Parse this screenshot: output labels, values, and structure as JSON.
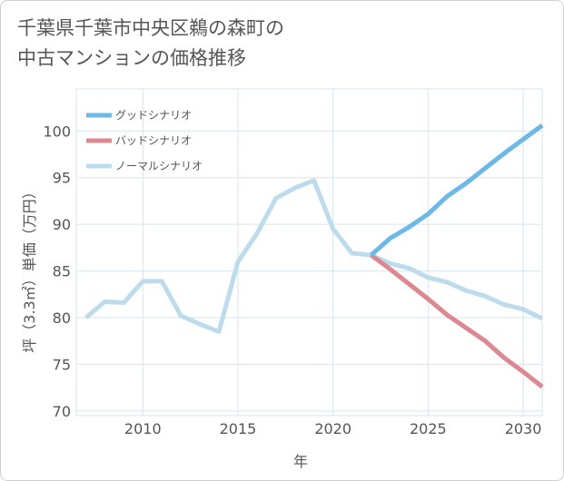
{
  "title": {
    "line1": "千葉県千葉市中央区鵜の森町の",
    "line2": "中古マンションの価格推移"
  },
  "colors": {
    "good": "#6cb8e8",
    "bad": "#dd8890",
    "normal": "#bcdcec",
    "grid": "#d5e5ee",
    "text": "#555555"
  },
  "chart_data": {
    "type": "line",
    "title": "千葉県千葉市中央区鵜の森町の中古マンションの価格推移",
    "xlabel": "年",
    "ylabel": "坪（3.3㎡）単価（万円）",
    "xlim": [
      2006.5,
      2031
    ],
    "ylim": [
      69.5,
      104.5
    ],
    "xticks": [
      2010,
      2015,
      2020,
      2025,
      2030
    ],
    "yticks": [
      70,
      75,
      80,
      85,
      90,
      95,
      100
    ],
    "grid": true,
    "legend_position": "top-left",
    "series": [
      {
        "name": "グッドシナリオ",
        "color": "#6cb8e8",
        "x": [
          2022,
          2023,
          2024,
          2025,
          2026,
          2027,
          2028,
          2029,
          2030,
          2031
        ],
        "y": [
          86.7,
          88.5,
          89.7,
          91.1,
          93.0,
          94.4,
          96.0,
          97.6,
          99.1,
          100.6
        ]
      },
      {
        "name": "バッドシナリオ",
        "color": "#dd8890",
        "x": [
          2022,
          2023,
          2024,
          2025,
          2026,
          2027,
          2028,
          2029,
          2030,
          2031
        ],
        "y": [
          86.7,
          85.2,
          83.6,
          82.0,
          80.3,
          78.9,
          77.5,
          75.7,
          74.2,
          72.6
        ]
      },
      {
        "name": "ノーマルシナリオ",
        "color": "#bcdcec",
        "x": [
          2007,
          2008,
          2009,
          2010,
          2011,
          2012,
          2013,
          2014,
          2015,
          2016,
          2017,
          2018,
          2019,
          2020,
          2021,
          2022,
          2023,
          2024,
          2025,
          2026,
          2027,
          2028,
          2029,
          2030,
          2031
        ],
        "y": [
          80.0,
          81.7,
          81.6,
          83.9,
          83.9,
          80.2,
          79.3,
          78.5,
          86.0,
          89.0,
          92.8,
          93.9,
          94.7,
          89.5,
          86.9,
          86.7,
          85.8,
          85.3,
          84.3,
          83.8,
          82.9,
          82.3,
          81.4,
          80.9,
          79.9
        ]
      }
    ]
  }
}
